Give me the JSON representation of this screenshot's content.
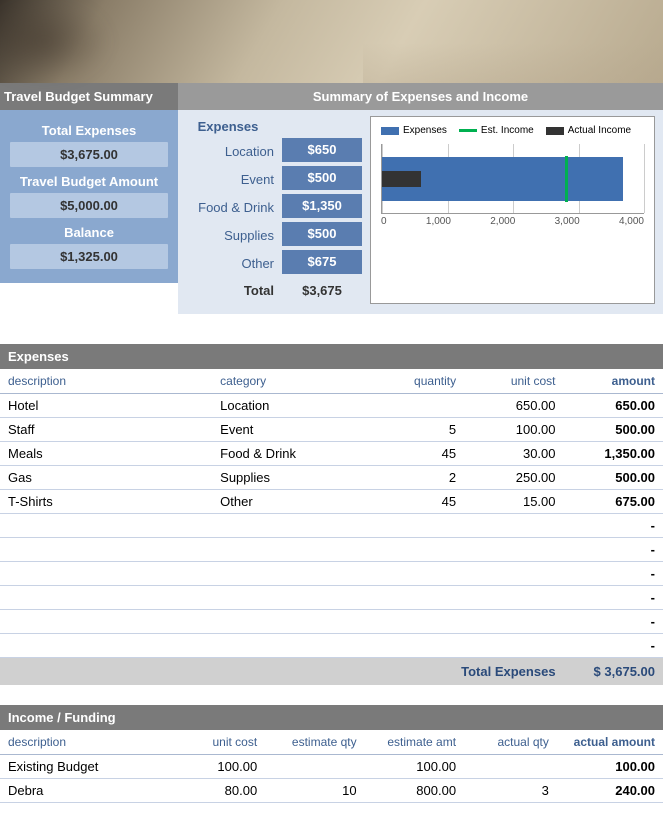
{
  "summary_left": {
    "header": "Travel Budget Summary",
    "total_expenses_label": "Total Expenses",
    "total_expenses_value": "$3,675.00",
    "budget_amount_label": "Travel Budget Amount",
    "budget_amount_value": "$5,000.00",
    "balance_label": "Balance",
    "balance_value": "$1,325.00"
  },
  "summary_right": {
    "header": "Summary of Expenses and Income",
    "expenses_heading": "Expenses",
    "breakdown": [
      {
        "label": "Location",
        "value": "$650"
      },
      {
        "label": "Event",
        "value": "$500"
      },
      {
        "label": "Food & Drink",
        "value": "$1,350"
      },
      {
        "label": "Supplies",
        "value": "$500"
      },
      {
        "label": "Other",
        "value": "$675"
      }
    ],
    "total_label": "Total",
    "total_value": "$3,675"
  },
  "chart": {
    "type": "bar_horizontal",
    "legend": {
      "expenses": "Expenses",
      "est_income": "Est. Income",
      "actual_income": "Actual Income"
    },
    "series": {
      "expenses": {
        "value": 3675,
        "color": "#4070b0"
      },
      "actual_income": {
        "value": 600,
        "color": "#333333"
      },
      "est_income": {
        "value": 2800,
        "color": "#00b050"
      }
    },
    "xlim": [
      0,
      4000
    ],
    "xticks": [
      0,
      1000,
      2000,
      3000,
      4000
    ],
    "xtick_labels": [
      "0",
      "1,000",
      "2,000",
      "3,000",
      "4,000"
    ],
    "background_color": "#ffffff",
    "grid_color": "#cccccc",
    "axis_color": "#999999"
  },
  "expenses_table": {
    "header": "Expenses",
    "columns": {
      "description": "description",
      "category": "category",
      "quantity": "quantity",
      "unit_cost": "unit cost",
      "amount": "amount"
    },
    "rows": [
      {
        "description": "Hotel",
        "category": "Location",
        "quantity": "",
        "unit_cost": "650.00",
        "amount": "650.00"
      },
      {
        "description": "Staff",
        "category": "Event",
        "quantity": "5",
        "unit_cost": "100.00",
        "amount": "500.00"
      },
      {
        "description": "Meals",
        "category": "Food & Drink",
        "quantity": "45",
        "unit_cost": "30.00",
        "amount": "1,350.00"
      },
      {
        "description": "Gas",
        "category": "Supplies",
        "quantity": "2",
        "unit_cost": "250.00",
        "amount": "500.00"
      },
      {
        "description": "T-Shirts",
        "category": "Other",
        "quantity": "45",
        "unit_cost": "15.00",
        "amount": "675.00"
      }
    ],
    "empty_row_count": 6,
    "total_label": "Total Expenses",
    "total_value": "$  3,675.00"
  },
  "income_table": {
    "header": "Income / Funding",
    "columns": {
      "description": "description",
      "unit_cost": "unit cost",
      "estimate_qty": "estimate qty",
      "estimate_amt": "estimate amt",
      "actual_qty": "actual qty",
      "actual_amount": "actual amount"
    },
    "rows": [
      {
        "description": "Existing Budget",
        "unit_cost": "100.00",
        "estimate_qty": "",
        "estimate_amt": "100.00",
        "actual_qty": "",
        "actual_amount": "100.00"
      },
      {
        "description": "Debra",
        "unit_cost": "80.00",
        "estimate_qty": "10",
        "estimate_amt": "800.00",
        "actual_qty": "3",
        "actual_amount": "240.00"
      }
    ]
  },
  "colors": {
    "header_dark": "#7a7a7a",
    "header_mid": "#9a9a9a",
    "panel_blue": "#8aa8cf",
    "panel_blue_light": "#b4c8e2",
    "panel_bg": "#e1e8f2",
    "value_blue": "#5a7db0",
    "text_blue": "#3d5f8f",
    "row_border": "#c8d2e4"
  }
}
